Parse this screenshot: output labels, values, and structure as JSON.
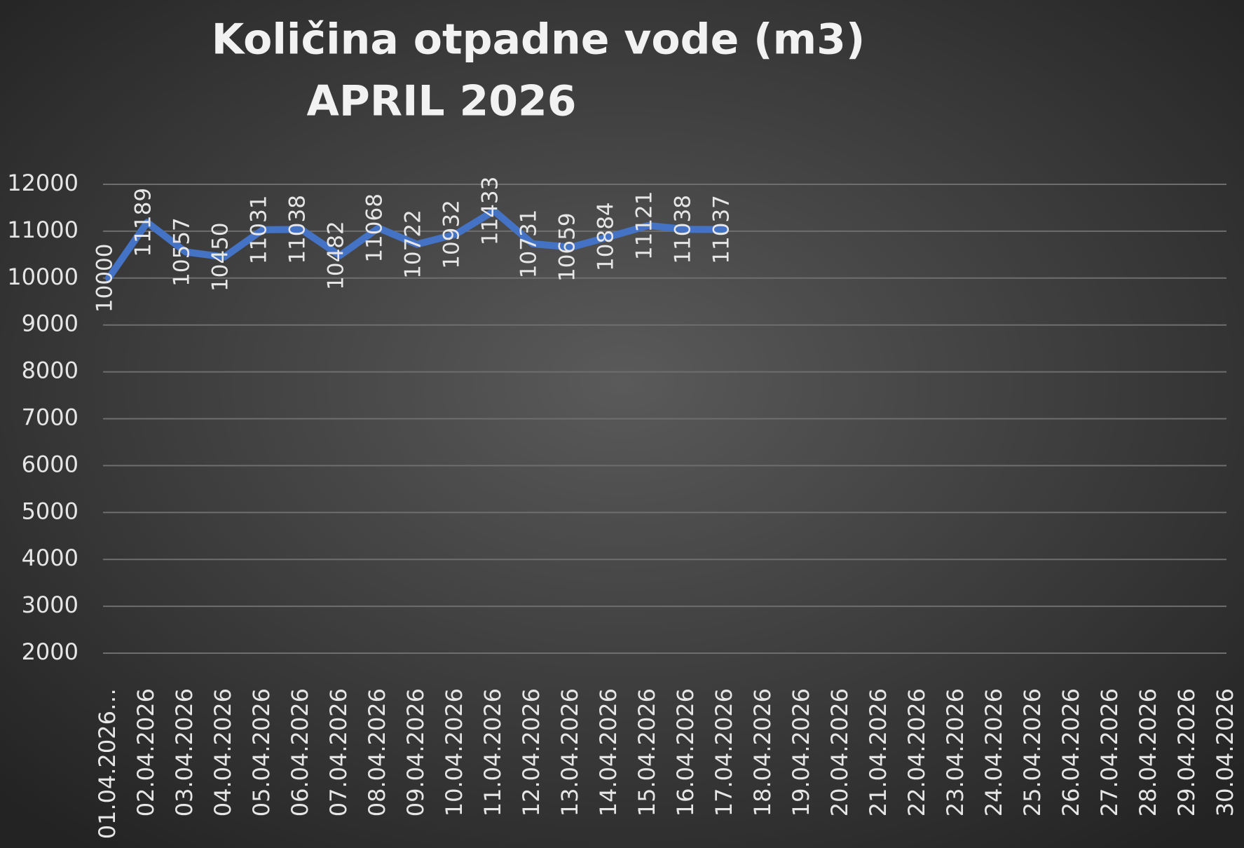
{
  "chart_data": {
    "type": "line",
    "title": "Količina otpadne vode (m3)",
    "subtitle": "APRIL 2026",
    "categories": [
      "01.04.2026…",
      "02.04.2026",
      "03.04.2026",
      "04.04.2026",
      "05.04.2026",
      "06.04.2026",
      "07.04.2026",
      "08.04.2026",
      "09.04.2026",
      "10.04.2026",
      "11.04.2026",
      "12.04.2026",
      "13.04.2026",
      "14.04.2026",
      "15.04.2026",
      "16.04.2026",
      "17.04.2026",
      "18.04.2026",
      "19.04.2026",
      "20.04.2026",
      "21.04.2026",
      "22.04.2026",
      "23.04.2026",
      "24.04.2026",
      "25.04.2026",
      "26.04.2026",
      "27.04.2026",
      "28.04.2026",
      "29.04.2026",
      "30.04.2026"
    ],
    "values": [
      10000,
      11189,
      10557,
      10450,
      11031,
      11038,
      10482,
      11068,
      10722,
      10932,
      11433,
      10731,
      10659,
      10884,
      11121,
      11038,
      11037,
      null,
      null,
      null,
      null,
      null,
      null,
      null,
      null,
      null,
      null,
      null,
      null,
      null
    ],
    "color": "#4472c4",
    "ylim": [
      2000,
      12000
    ],
    "yticks": [
      2000,
      3000,
      4000,
      5000,
      6000,
      7000,
      8000,
      9000,
      10000,
      11000,
      12000
    ],
    "grid": true
  }
}
